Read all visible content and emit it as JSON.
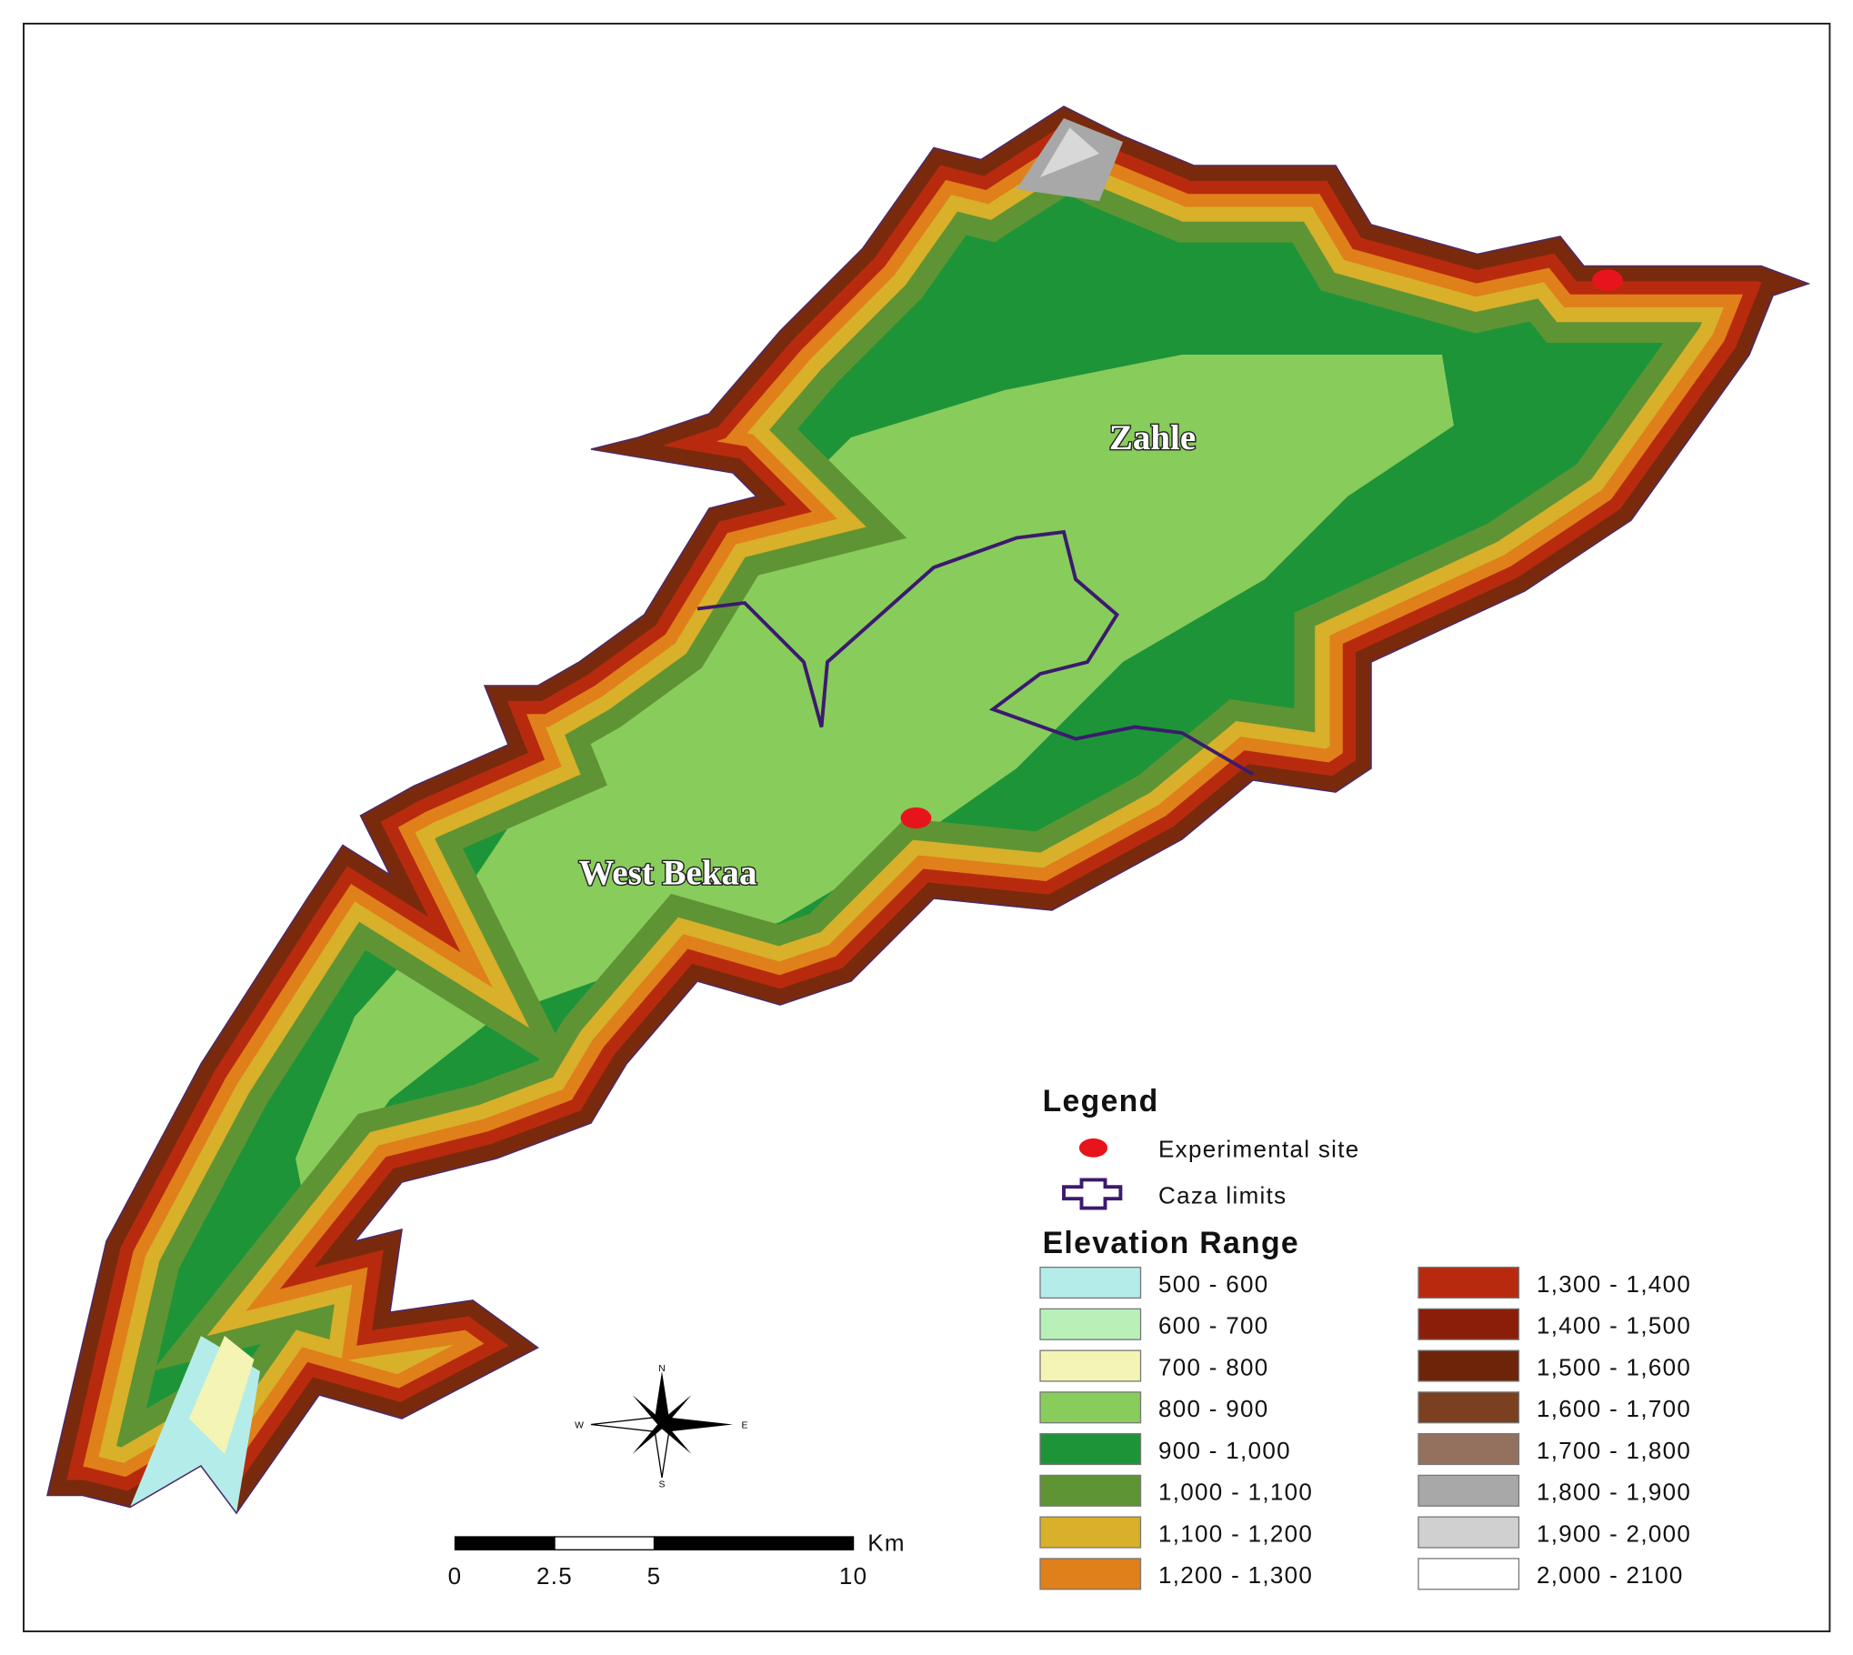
{
  "map": {
    "labels": [
      "Zahle",
      "West Bekaa"
    ],
    "compass": [
      "N",
      "E",
      "S",
      "W"
    ]
  },
  "legend": {
    "title": "Legend",
    "items": [
      "Experimental site",
      "Caza limits"
    ],
    "elevation_title": "Elevation Range",
    "ranges": [
      {
        "label": "500 - 600",
        "color": "#b4ecea"
      },
      {
        "label": "600  - 700",
        "color": "#b8f0b8"
      },
      {
        "label": "700 - 800",
        "color": "#f4f4b4"
      },
      {
        "label": "800 - 900",
        "color": "#88cc5c"
      },
      {
        "label": "900 - 1,000",
        "color": "#1e9438"
      },
      {
        "label": "1,000 - 1,100",
        "color": "#5f9434"
      },
      {
        "label": "1,100 - 1,200",
        "color": "#d8b02a"
      },
      {
        "label": "1,200 - 1,300",
        "color": "#e0801a"
      },
      {
        "label": "1,300 - 1,400",
        "color": "#b82a0e"
      },
      {
        "label": "1,400 - 1,500",
        "color": "#8a1e08"
      },
      {
        "label": "1,500 - 1,600",
        "color": "#6e2408"
      },
      {
        "label": "1,600 - 1,700",
        "color": "#7a4020"
      },
      {
        "label": "1,700 - 1,800",
        "color": "#94705e"
      },
      {
        "label": "1,800 - 1,900",
        "color": "#a8a8a8"
      },
      {
        "label": "1,900 - 2,000",
        "color": "#d0d0d0"
      },
      {
        "label": "2,000 - 2100",
        "color": "#ffffff"
      }
    ]
  },
  "scale_bar": {
    "unit": "Km",
    "ticks": [
      0,
      2.5,
      5,
      10
    ]
  }
}
